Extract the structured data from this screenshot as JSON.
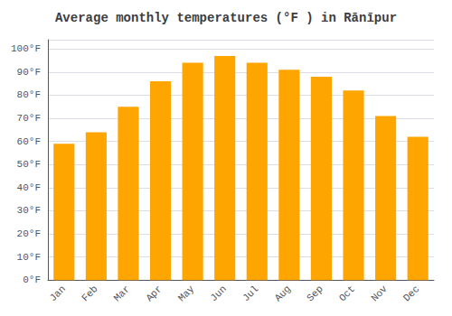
{
  "chart_data": {
    "type": "bar",
    "title": "Average monthly temperatures (°F ) in Rānīpur",
    "categories": [
      "Jan",
      "Feb",
      "Mar",
      "Apr",
      "May",
      "Jun",
      "Jul",
      "Aug",
      "Sep",
      "Oct",
      "Nov",
      "Dec"
    ],
    "values": [
      59,
      64,
      75,
      86,
      94,
      97,
      94,
      91,
      88,
      82,
      71,
      62
    ],
    "color": "#FFA500",
    "ylim": [
      0,
      104
    ],
    "yticks": [
      {
        "value": 0,
        "label": "0°F"
      },
      {
        "value": 10,
        "label": "10°F"
      },
      {
        "value": 20,
        "label": "20°F"
      },
      {
        "value": 30,
        "label": "30°F"
      },
      {
        "value": 40,
        "label": "40°F"
      },
      {
        "value": 50,
        "label": "50°F"
      },
      {
        "value": 60,
        "label": "60°F"
      },
      {
        "value": 70,
        "label": "70°F"
      },
      {
        "value": 80,
        "label": "80°F"
      },
      {
        "value": 90,
        "label": "90°F"
      },
      {
        "value": 100,
        "label": "100°F"
      }
    ],
    "grid": true
  }
}
